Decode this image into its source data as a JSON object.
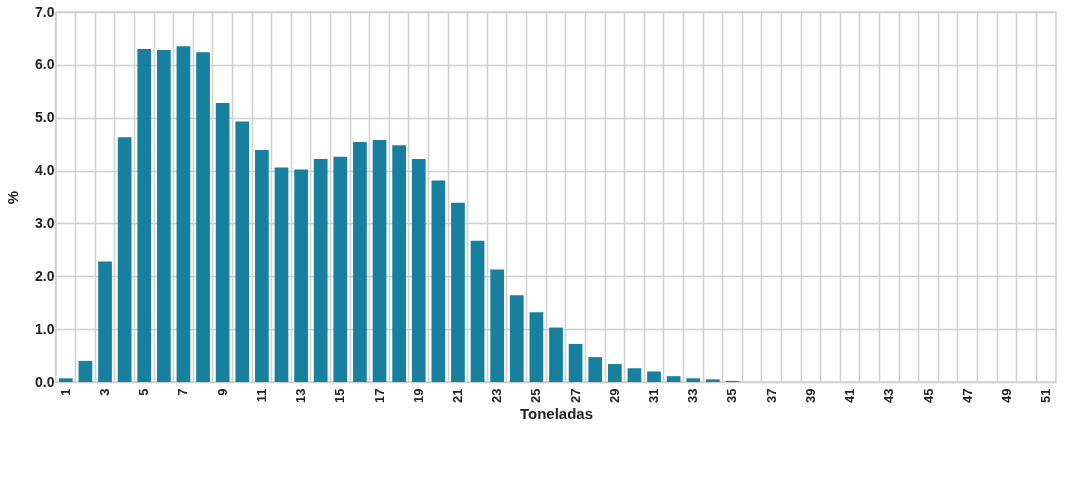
{
  "chart_data": {
    "type": "bar",
    "xlabel": "Toneladas",
    "ylabel": "%",
    "categories": [
      "1",
      null,
      "3",
      null,
      "5",
      null,
      "7",
      null,
      "9",
      null,
      "11",
      null,
      "13",
      null,
      "15",
      null,
      "17",
      null,
      "19",
      null,
      "21",
      null,
      "23",
      null,
      "25",
      null,
      "27",
      null,
      "29",
      null,
      "31",
      null,
      "33",
      null,
      "35",
      null,
      "37",
      null,
      "39",
      null,
      "41",
      null,
      "43",
      null,
      "45",
      null,
      "47",
      null,
      "49",
      null,
      "51"
    ],
    "values": [
      0.07,
      0.4,
      2.28,
      4.63,
      6.3,
      6.28,
      6.35,
      6.24,
      5.28,
      4.93,
      4.39,
      4.06,
      4.02,
      4.22,
      4.26,
      4.54,
      4.58,
      4.48,
      4.22,
      3.81,
      3.39,
      2.67,
      2.13,
      1.64,
      1.32,
      1.03,
      0.72,
      0.47,
      0.34,
      0.26,
      0.2,
      0.11,
      0.07,
      0.05,
      0.02,
      0,
      0,
      0,
      0,
      0,
      0,
      0,
      0,
      0,
      0,
      0,
      0,
      0,
      0,
      0,
      0
    ],
    "color": "#17809e",
    "ylim": [
      0,
      7
    ],
    "yticks": [
      {
        "value": 0,
        "label": "0.0"
      },
      {
        "value": 1,
        "label": "1.0"
      },
      {
        "value": 2,
        "label": "2.0"
      },
      {
        "value": 3,
        "label": "3.0"
      },
      {
        "value": 4,
        "label": "4.0"
      },
      {
        "value": 5,
        "label": "5.0"
      },
      {
        "value": 6,
        "label": "6.0"
      },
      {
        "value": 7,
        "label": "7.0"
      }
    ],
    "grid": true
  }
}
